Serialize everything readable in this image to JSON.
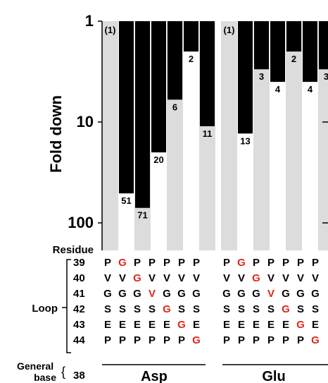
{
  "chart_data": {
    "type": "bar",
    "orientation": "downward",
    "ylabel": "Fold down",
    "yscale": "log",
    "ylim": [
      1,
      100
    ],
    "yticks": [
      "1",
      "10",
      "100"
    ],
    "groups": [
      {
        "name": "Asp",
        "bars": [
          {
            "value": 1,
            "label": "(1)"
          },
          {
            "value": 51,
            "label": "51"
          },
          {
            "value": 71,
            "label": "71"
          },
          {
            "value": 20,
            "label": "20"
          },
          {
            "value": 6,
            "label": "6"
          },
          {
            "value": 2,
            "label": "2"
          },
          {
            "value": 11,
            "label": "11"
          }
        ]
      },
      {
        "name": "Glu",
        "bars": [
          {
            "value": 1,
            "label": "(1)"
          },
          {
            "value": 13,
            "label": "13"
          },
          {
            "value": 3,
            "label": "3"
          },
          {
            "value": 4,
            "label": "4"
          },
          {
            "value": 2,
            "label": "2"
          },
          {
            "value": 4,
            "label": "4"
          },
          {
            "value": 3,
            "label": "3"
          }
        ]
      }
    ],
    "residue_header": "Residue",
    "loop_label": "Loop",
    "general_base_label": "General\nbase",
    "residue_rows": [
      {
        "pos": "39",
        "asp": [
          "P",
          "G",
          "P",
          "P",
          "P",
          "P",
          "P"
        ],
        "glu": [
          "P",
          "G",
          "P",
          "P",
          "P",
          "P",
          "P"
        ],
        "red": 1
      },
      {
        "pos": "40",
        "asp": [
          "V",
          "V",
          "G",
          "V",
          "V",
          "V",
          "V"
        ],
        "glu": [
          "V",
          "V",
          "G",
          "V",
          "V",
          "V",
          "V"
        ],
        "red": 2
      },
      {
        "pos": "41",
        "asp": [
          "G",
          "G",
          "G",
          "V",
          "G",
          "G",
          "G"
        ],
        "glu": [
          "G",
          "G",
          "G",
          "V",
          "G",
          "G",
          "G"
        ],
        "red": 3
      },
      {
        "pos": "42",
        "asp": [
          "S",
          "S",
          "S",
          "S",
          "G",
          "S",
          "S"
        ],
        "glu": [
          "S",
          "S",
          "S",
          "S",
          "G",
          "S",
          "S"
        ],
        "red": 4
      },
      {
        "pos": "43",
        "asp": [
          "E",
          "E",
          "E",
          "E",
          "E",
          "G",
          "E"
        ],
        "glu": [
          "E",
          "E",
          "E",
          "E",
          "E",
          "G",
          "E"
        ],
        "red": 5
      },
      {
        "pos": "44",
        "asp": [
          "P",
          "P",
          "P",
          "P",
          "P",
          "P",
          "G"
        ],
        "glu": [
          "P",
          "P",
          "P",
          "P",
          "P",
          "P",
          "G"
        ],
        "red": 6
      }
    ],
    "general_base_row": {
      "pos": "38"
    },
    "colors": {
      "bar": "#000000",
      "stripe": "#dcdcdc",
      "mutation": "#e0261b",
      "text": "#000000"
    }
  }
}
